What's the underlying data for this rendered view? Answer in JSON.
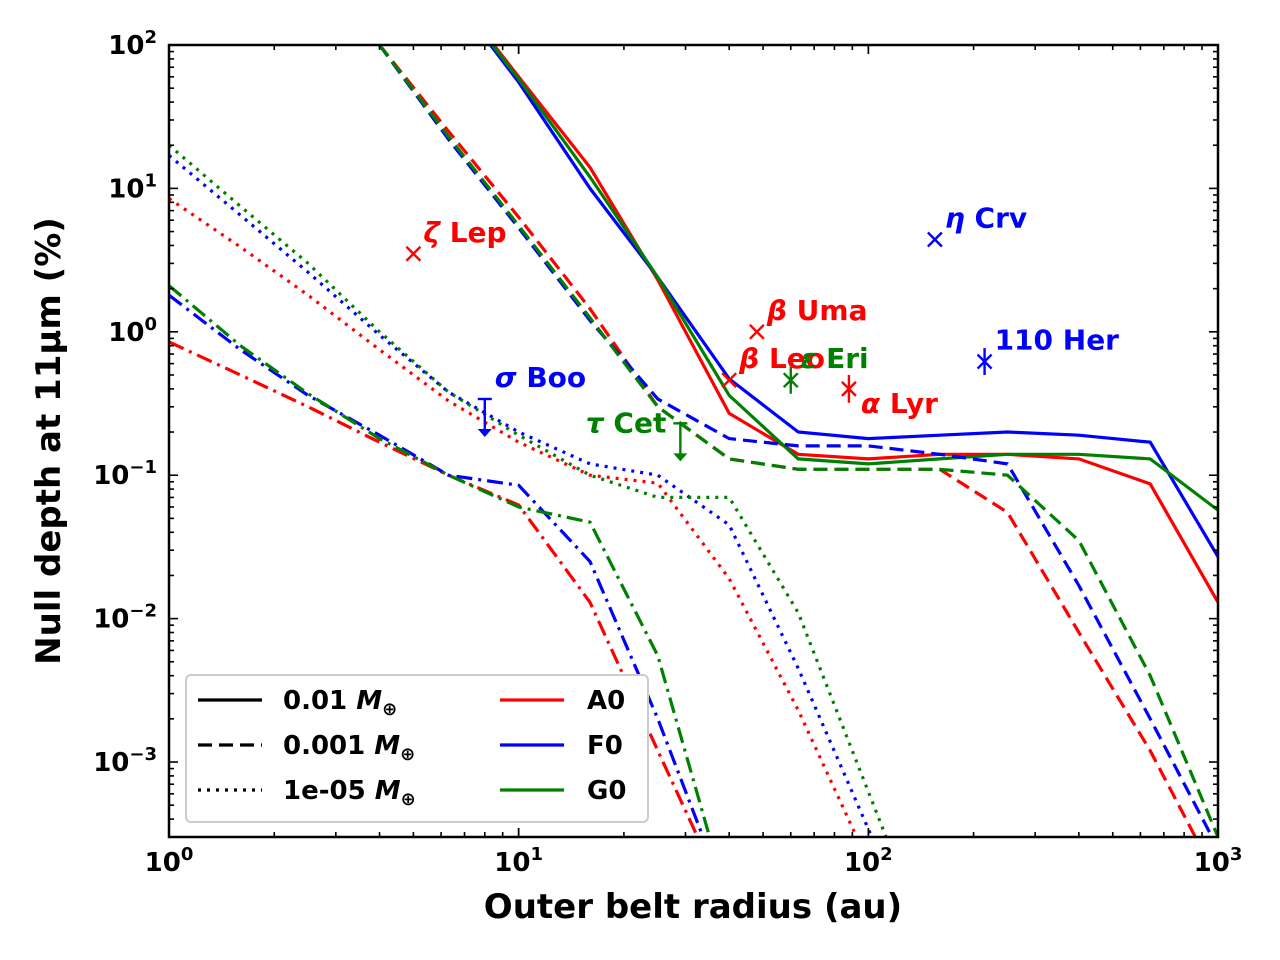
{
  "chart_data": {
    "type": "line",
    "title": "",
    "xlabel": "Outer belt radius (au)",
    "ylabel": "Null depth at 11μm (%)",
    "xscale": "log",
    "yscale": "log",
    "xlim": [
      1,
      1000
    ],
    "ylim": [
      0.0003,
      100
    ],
    "x_tick_labels": [
      {
        "value": 1,
        "base": "10",
        "exp": "0"
      },
      {
        "value": 10,
        "base": "10",
        "exp": "1"
      },
      {
        "value": 100,
        "base": "10",
        "exp": "2"
      },
      {
        "value": 1000,
        "base": "10",
        "exp": "3"
      }
    ],
    "y_tick_labels": [
      {
        "value": 0.001,
        "base": "10",
        "exp": "−3"
      },
      {
        "value": 0.01,
        "base": "10",
        "exp": "−2"
      },
      {
        "value": 0.1,
        "base": "10",
        "exp": "−1"
      },
      {
        "value": 1,
        "base": "10",
        "exp": "0"
      },
      {
        "value": 10,
        "base": "10",
        "exp": "1"
      },
      {
        "value": 100,
        "base": "10",
        "exp": "2"
      }
    ],
    "colors": {
      "A0": "#ff0000",
      "F0": "#0000ff",
      "G0": "#008000"
    },
    "legend": {
      "placement": "lower-left",
      "mass_entries": [
        {
          "style": "solid",
          "label": "0.01 ",
          "symbol": "M",
          "sub": "⊕"
        },
        {
          "style": "dashed",
          "label": "0.001 ",
          "symbol": "M",
          "sub": "⊕"
        },
        {
          "style": "dotted",
          "label": "1e-05 ",
          "symbol": "M",
          "sub": "⊕"
        }
      ],
      "type_entries": [
        {
          "color_key": "A0",
          "label": "A0"
        },
        {
          "color_key": "F0",
          "label": "F0"
        },
        {
          "color_key": "G0",
          "label": "G0"
        }
      ]
    },
    "series": [
      {
        "spectral_type": "A0",
        "mass": "0.01",
        "style": "solid",
        "x": [
          6.8,
          10,
          16,
          25,
          40,
          63,
          100,
          160,
          250,
          400,
          640,
          1000
        ],
        "y": [
          200,
          60,
          14,
          2.3,
          0.27,
          0.14,
          0.13,
          0.14,
          0.14,
          0.13,
          0.087,
          0.013
        ]
      },
      {
        "spectral_type": "F0",
        "mass": "0.01",
        "style": "solid",
        "x": [
          6.8,
          10,
          16,
          25,
          40,
          63,
          100,
          160,
          250,
          400,
          640,
          1000
        ],
        "y": [
          190,
          55,
          10,
          2.4,
          0.47,
          0.2,
          0.18,
          0.19,
          0.2,
          0.19,
          0.17,
          0.027
        ]
      },
      {
        "spectral_type": "G0",
        "mass": "0.01",
        "style": "solid",
        "x": [
          6.8,
          10,
          16,
          25,
          40,
          63,
          100,
          160,
          250,
          400,
          640,
          1000
        ],
        "y": [
          195,
          58,
          12,
          2.4,
          0.36,
          0.13,
          0.12,
          0.13,
          0.14,
          0.14,
          0.13,
          0.057
        ]
      },
      {
        "spectral_type": "A0",
        "mass": "0.001",
        "style": "dashed",
        "x": [
          4,
          6.3,
          10,
          16,
          25,
          40,
          63,
          100,
          160,
          250,
          400,
          640,
          1000
        ],
        "y": [
          100,
          25,
          6.3,
          1.45,
          0.3,
          0.13,
          0.11,
          0.11,
          0.11,
          0.055,
          0.008,
          0.0012,
          0.00015
        ]
      },
      {
        "spectral_type": "F0",
        "mass": "0.001",
        "style": "dashed",
        "x": [
          4,
          6.3,
          10,
          16,
          25,
          40,
          63,
          100,
          160,
          250,
          400,
          640,
          1000
        ],
        "y": [
          100,
          22,
          5.3,
          1.2,
          0.34,
          0.18,
          0.16,
          0.16,
          0.14,
          0.12,
          0.017,
          0.002,
          0.00025
        ]
      },
      {
        "spectral_type": "G0",
        "mass": "0.001",
        "style": "dashed",
        "x": [
          4,
          6.3,
          10,
          16,
          25,
          40,
          63,
          100,
          160,
          250,
          400,
          640,
          1000
        ],
        "y": [
          100,
          23,
          5.5,
          1.25,
          0.3,
          0.13,
          0.11,
          0.11,
          0.11,
          0.1,
          0.035,
          0.004,
          0.0003
        ]
      },
      {
        "spectral_type": "A0",
        "mass": "1e-05",
        "style": "dotted",
        "x": [
          1,
          1.6,
          2.5,
          4,
          6.3,
          10,
          16,
          25,
          40,
          63,
          100
        ],
        "y": [
          8.5,
          3.9,
          1.8,
          0.75,
          0.33,
          0.17,
          0.1,
          0.088,
          0.019,
          0.0023,
          0.0002
        ]
      },
      {
        "spectral_type": "F0",
        "mass": "1e-05",
        "style": "dotted",
        "x": [
          1,
          1.6,
          2.5,
          4,
          6.3,
          10,
          16,
          25,
          40,
          63,
          110
        ],
        "y": [
          17,
          6.5,
          2.6,
          0.95,
          0.38,
          0.2,
          0.12,
          0.1,
          0.045,
          0.0045,
          0.0002
        ]
      },
      {
        "spectral_type": "G0",
        "mass": "1e-05",
        "style": "dotted",
        "x": [
          1,
          1.6,
          2.5,
          4,
          6.3,
          10,
          16,
          25,
          40,
          63,
          120
        ],
        "y": [
          20,
          7.5,
          3,
          1.0,
          0.38,
          0.19,
          0.1,
          0.07,
          0.07,
          0.011,
          0.0002
        ]
      },
      {
        "spectral_type": "A0",
        "mass": "",
        "style": "dashdot",
        "x": [
          1,
          1.6,
          2.5,
          4,
          6.3,
          10,
          16,
          25,
          40
        ],
        "y": [
          0.85,
          0.5,
          0.3,
          0.17,
          0.1,
          0.062,
          0.013,
          0.0012,
          0.0001
        ]
      },
      {
        "spectral_type": "F0",
        "mass": "",
        "style": "dashdot",
        "x": [
          1,
          1.6,
          2.5,
          4,
          6.3,
          10,
          16,
          25,
          40
        ],
        "y": [
          1.8,
          0.75,
          0.36,
          0.19,
          0.1,
          0.085,
          0.025,
          0.002,
          0.0001
        ]
      },
      {
        "spectral_type": "G0",
        "mass": "",
        "style": "dashdot",
        "x": [
          1,
          1.6,
          2.5,
          4,
          6.3,
          10,
          16,
          25,
          40
        ],
        "y": [
          2.1,
          0.8,
          0.37,
          0.18,
          0.1,
          0.06,
          0.047,
          0.0055,
          0.0001
        ]
      }
    ],
    "stars": [
      {
        "greek": "ζ",
        "name": " Lep",
        "color_key": "A0",
        "marker": "x",
        "x": 5,
        "y": 3.5,
        "label_side": "upper-right"
      },
      {
        "greek": "β",
        "name": " Uma",
        "color_key": "A0",
        "marker": "x",
        "x": 48,
        "y": 1.0,
        "label_side": "upper-right"
      },
      {
        "greek": "β",
        "name": " Leo",
        "color_key": "A0",
        "marker": "x",
        "x": 40,
        "y": 0.46,
        "label_side": "upper-right"
      },
      {
        "greek": "α",
        "name": " Lyr",
        "color_key": "A0",
        "marker": "errorbar",
        "x": 88,
        "y": 0.4,
        "yerr": [
          0.32,
          0.5
        ],
        "label_side": "lower-right"
      },
      {
        "greek": "ε",
        "name": " Eri",
        "color_key": "G0",
        "marker": "errorbar",
        "x": 60,
        "y": 0.46,
        "yerr": [
          0.37,
          0.57
        ],
        "label_side": "upper-right"
      },
      {
        "greek": "τ",
        "name": " Cet",
        "color_key": "G0",
        "marker": "upper-limit",
        "x": 29,
        "y": 0.23,
        "label_side": "left"
      },
      {
        "greek": "σ",
        "name": " Boo",
        "color_key": "F0",
        "marker": "upper-limit",
        "x": 8,
        "y": 0.34,
        "label_side": "upper-right"
      },
      {
        "greek": "η",
        "name": " Crv",
        "color_key": "F0",
        "marker": "x",
        "x": 155,
        "y": 4.4,
        "label_side": "upper-right"
      },
      {
        "greek": "",
        "name": "110 Her",
        "color_key": "F0",
        "marker": "errorbar",
        "x": 215,
        "y": 0.62,
        "yerr": [
          0.5,
          0.77
        ],
        "label_side": "upper-right"
      }
    ]
  }
}
